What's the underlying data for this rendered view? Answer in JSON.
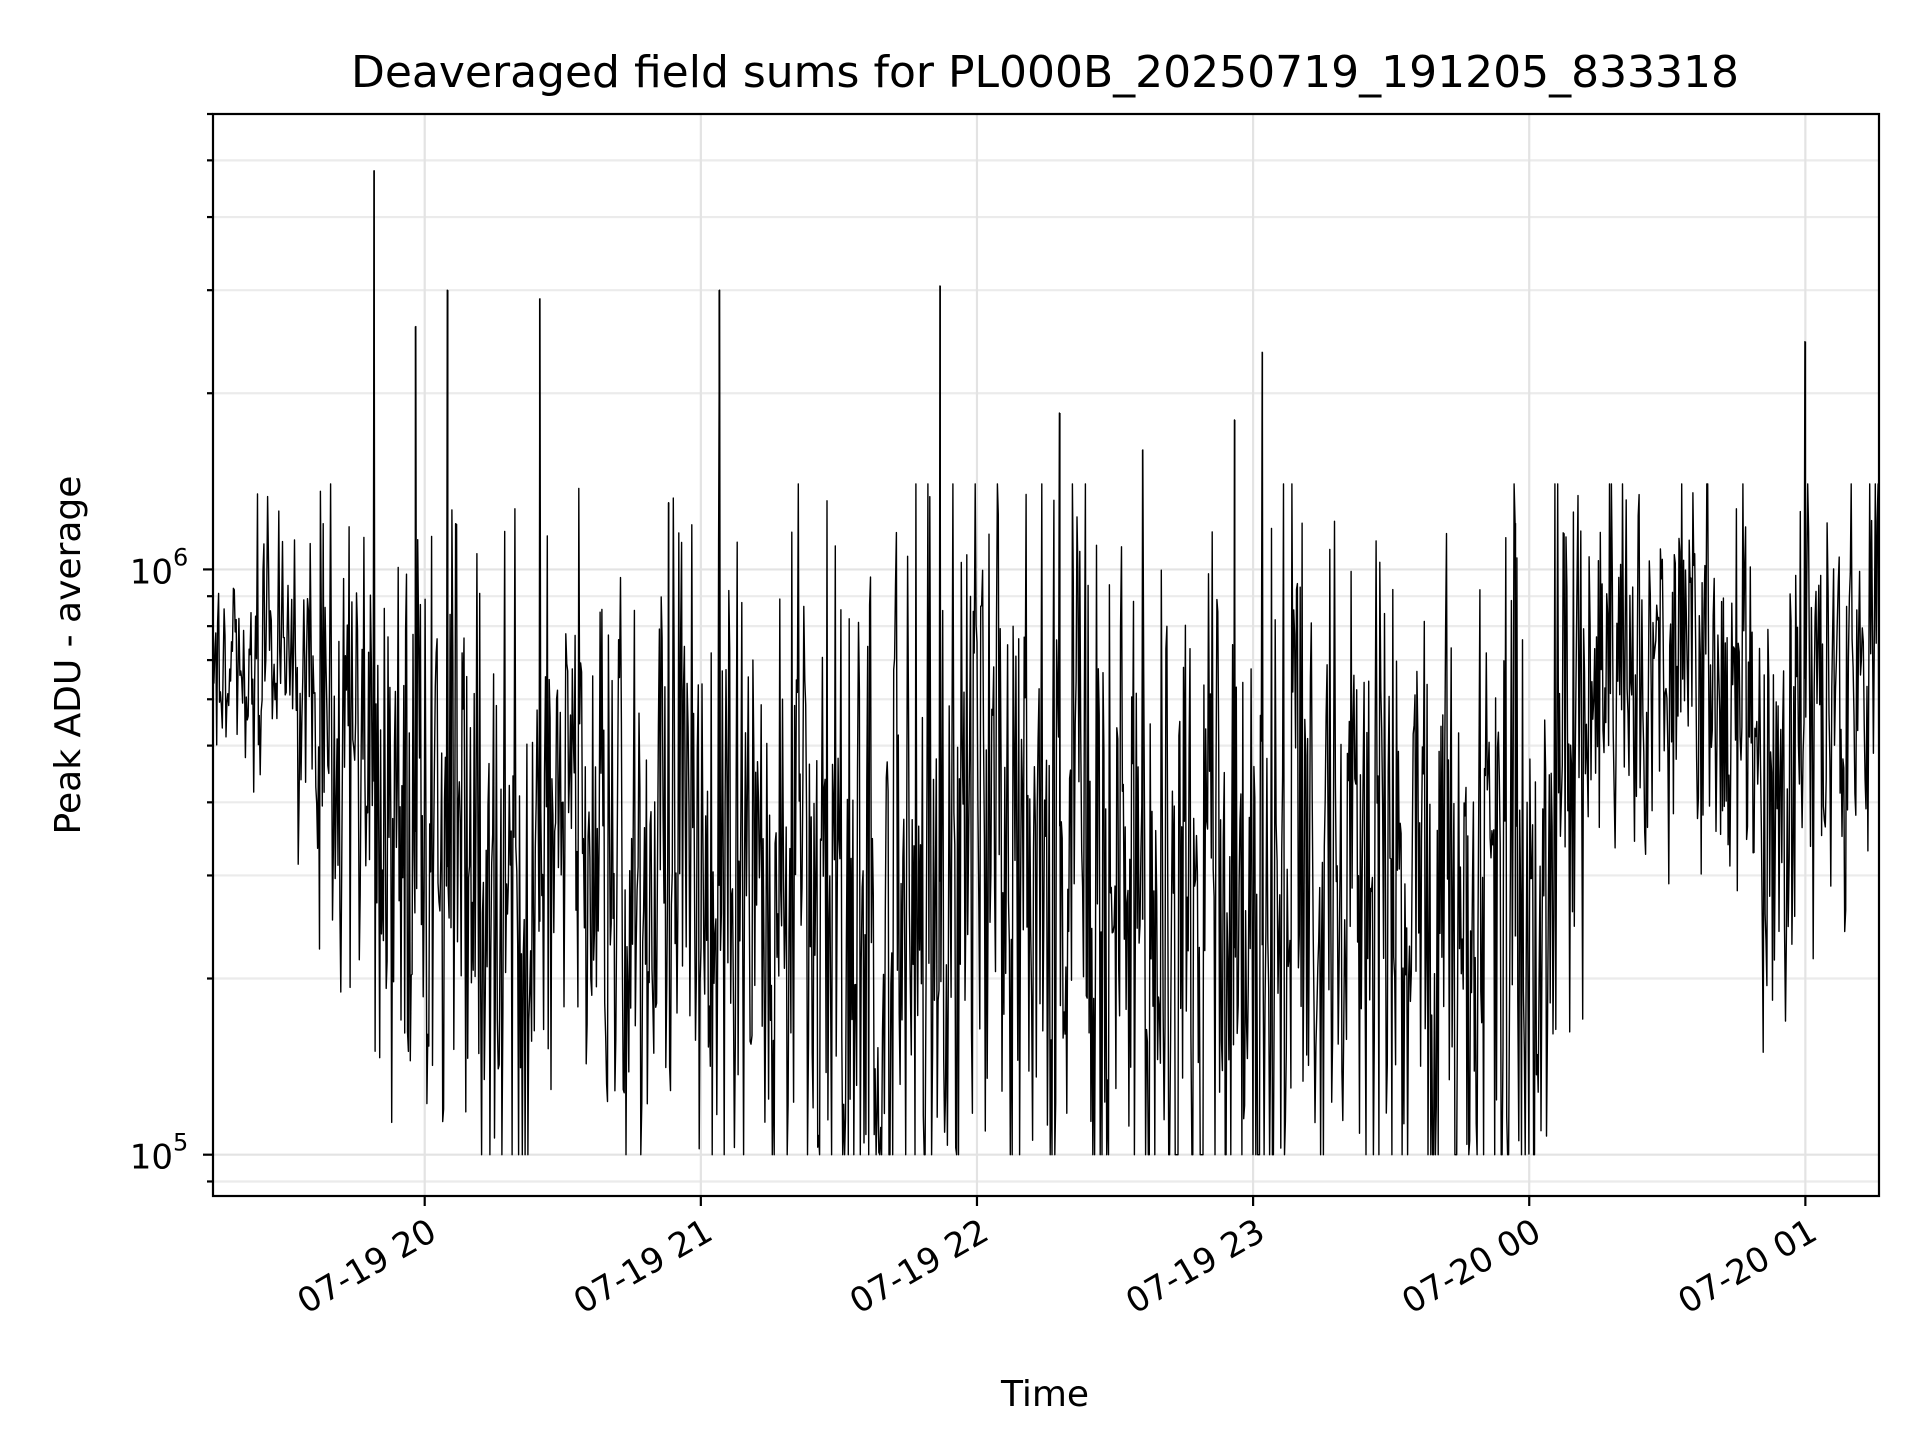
{
  "chart_data": {
    "type": "line",
    "title": "Deaveraged field sums for PL000B_20250719_191205_833318",
    "xlabel": "Time",
    "ylabel": "Peak ADU - average",
    "yscale": "log",
    "ylim": [
      85000,
      6000000
    ],
    "xlim": [
      "2025-07-19 19:14",
      "2025-07-20 01:16"
    ],
    "grid": true,
    "line_color": "#000000",
    "grid_color": "#e3e3e3",
    "x_ticks": [
      {
        "value": "2025-07-19 20:00",
        "label": "07-19 20"
      },
      {
        "value": "2025-07-19 21:00",
        "label": "07-19 21"
      },
      {
        "value": "2025-07-19 22:00",
        "label": "07-19 22"
      },
      {
        "value": "2025-07-19 23:00",
        "label": "07-19 23"
      },
      {
        "value": "2025-07-20 00:00",
        "label": "07-20 00"
      },
      {
        "value": "2025-07-20 01:00",
        "label": "07-20 01"
      }
    ],
    "y_ticks": [
      {
        "value": 100000,
        "base": "10",
        "exp": "5"
      },
      {
        "value": 1000000,
        "base": "10",
        "exp": "6"
      }
    ],
    "envelope": {
      "x": [
        "2025-07-19 19:14",
        "2025-07-19 19:30",
        "2025-07-19 19:40",
        "2025-07-19 19:50",
        "2025-07-19 20:00",
        "2025-07-19 20:10",
        "2025-07-19 20:20",
        "2025-07-19 20:25",
        "2025-07-19 20:30",
        "2025-07-19 20:40",
        "2025-07-19 20:50",
        "2025-07-19 20:55",
        "2025-07-19 21:00",
        "2025-07-19 21:10",
        "2025-07-19 21:30",
        "2025-07-19 21:45",
        "2025-07-19 22:00",
        "2025-07-19 22:15",
        "2025-07-19 22:20",
        "2025-07-19 22:30",
        "2025-07-19 22:45",
        "2025-07-19 23:00",
        "2025-07-19 23:15",
        "2025-07-19 23:30",
        "2025-07-19 23:45",
        "2025-07-20 00:00",
        "2025-07-20 00:05",
        "2025-07-20 00:10",
        "2025-07-20 00:20",
        "2025-07-20 00:30",
        "2025-07-20 00:40",
        "2025-07-20 00:45",
        "2025-07-20 00:50",
        "2025-07-20 00:55",
        "2025-07-20 01:00",
        "2025-07-20 01:10",
        "2025-07-20 01:16"
      ],
      "median": [
        680000,
        760000,
        560000,
        420000,
        340000,
        280000,
        260000,
        250000,
        550000,
        280000,
        250000,
        480000,
        300000,
        270000,
        230000,
        260000,
        330000,
        280000,
        420000,
        260000,
        240000,
        220000,
        280000,
        290000,
        260000,
        230000,
        300000,
        560000,
        720000,
        700000,
        700000,
        570000,
        520000,
        280000,
        650000,
        660000,
        600000
      ],
      "spread": [
        0.12,
        0.2,
        0.35,
        0.4,
        0.45,
        0.45,
        0.42,
        0.42,
        0.35,
        0.42,
        0.4,
        0.45,
        0.5,
        0.52,
        0.55,
        0.55,
        0.55,
        0.55,
        0.5,
        0.55,
        0.55,
        0.55,
        0.52,
        0.52,
        0.55,
        0.55,
        0.5,
        0.3,
        0.25,
        0.25,
        0.28,
        0.3,
        0.35,
        0.45,
        0.28,
        0.3,
        0.32
      ],
      "min": 100000,
      "max": 1400000
    },
    "spikes": [
      {
        "x": "2025-07-19 19:49",
        "y": 4800000
      },
      {
        "x": "2025-07-19 19:58",
        "y": 2600000
      },
      {
        "x": "2025-07-19 20:05",
        "y": 3000000
      },
      {
        "x": "2025-07-19 20:25",
        "y": 2900000
      },
      {
        "x": "2025-07-19 20:53",
        "y": 1300000
      },
      {
        "x": "2025-07-19 21:04",
        "y": 3000000
      },
      {
        "x": "2025-07-19 21:52",
        "y": 3050000
      },
      {
        "x": "2025-07-19 22:18",
        "y": 1850000
      },
      {
        "x": "2025-07-19 22:36",
        "y": 1600000
      },
      {
        "x": "2025-07-19 22:56",
        "y": 1800000
      },
      {
        "x": "2025-07-19 23:02",
        "y": 2350000
      },
      {
        "x": "2025-07-19 23:57",
        "y": 1200000
      },
      {
        "x": "2025-07-20 01:00",
        "y": 2450000
      }
    ]
  }
}
